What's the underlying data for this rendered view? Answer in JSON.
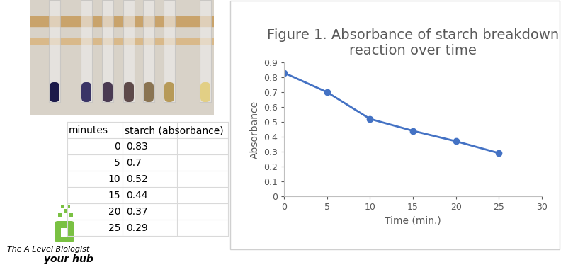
{
  "chart_data": {
    "type": "line",
    "title": "Figure 1. Absorbance of starch breakdown reaction over time",
    "x_label": "Time (min.)",
    "y_label": "Absorbance",
    "x": [
      0,
      5,
      10,
      15,
      20,
      25
    ],
    "values": [
      0.83,
      0.7,
      0.52,
      0.44,
      0.37,
      0.29
    ],
    "color": "#4472c4",
    "marker": "circle",
    "line_style": "solid",
    "xlim": [
      0,
      30
    ],
    "xticks": [
      0,
      5,
      10,
      15,
      20,
      25,
      30
    ],
    "ylim": [
      0,
      0.9
    ],
    "yticks": [
      0,
      0.1,
      0.2,
      0.3,
      0.4,
      0.5,
      0.6,
      0.7,
      0.8,
      0.9
    ],
    "grid": false
  },
  "table": {
    "header": [
      "minutes",
      "starch (absorbance)"
    ],
    "rows": [
      [
        0,
        0.83
      ],
      [
        5,
        0.7
      ],
      [
        10,
        0.52
      ],
      [
        15,
        0.44
      ],
      [
        20,
        0.37
      ],
      [
        25,
        0.29
      ]
    ]
  },
  "logo": {
    "texts": [
      "The A Level Biologist",
      "your hub"
    ]
  }
}
